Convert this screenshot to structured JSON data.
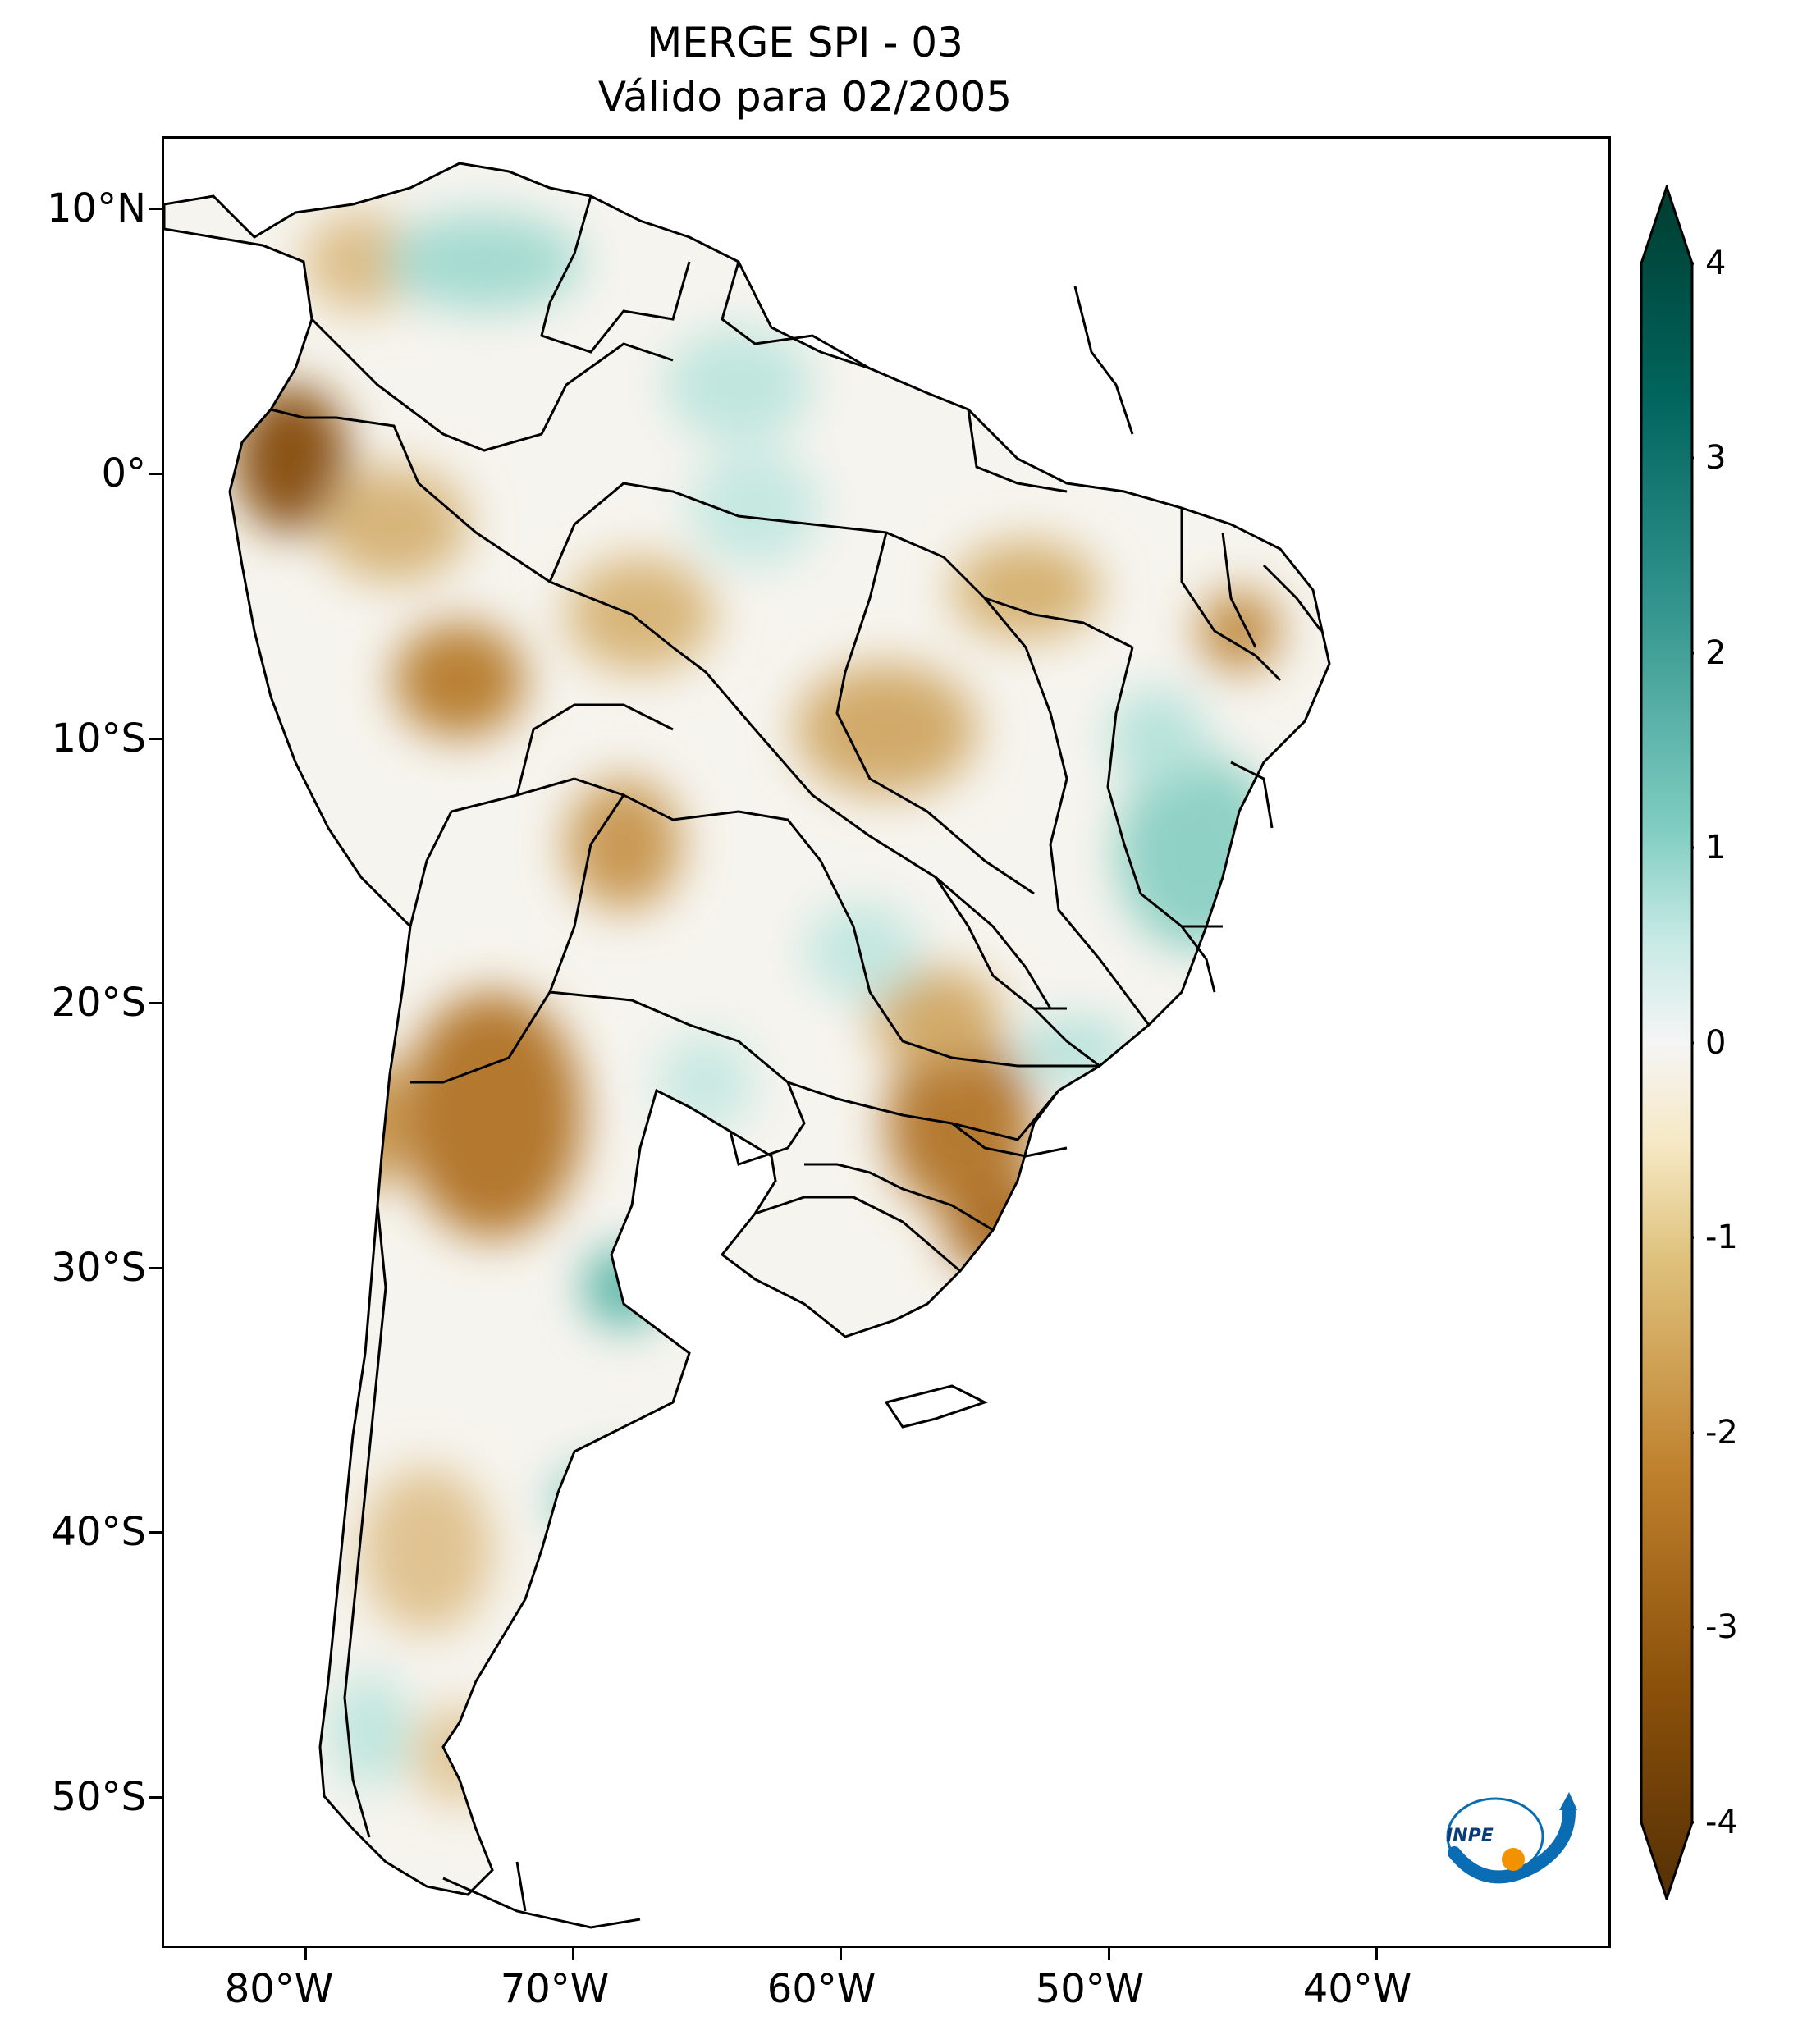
{
  "title": "MERGE   SPI - 03",
  "subtitle": "Válido para 02/2005",
  "map": {
    "lat_labels": [
      "10°N",
      "0°",
      "10°S",
      "20°S",
      "30°S",
      "40°S",
      "50°S"
    ],
    "lon_labels": [
      "80°W",
      "70°W",
      "60°W",
      "50°W",
      "40°W"
    ]
  },
  "colorbar": {
    "colormap": "BrBG",
    "range": [
      -4,
      4
    ],
    "ticks": [
      "4",
      "3",
      "2",
      "1",
      "0",
      "-1",
      "-2",
      "-3",
      "-4"
    ],
    "extend": "both"
  },
  "logo": {
    "text": "INPE",
    "colors": [
      "#0a6db3",
      "#f39200"
    ]
  }
}
